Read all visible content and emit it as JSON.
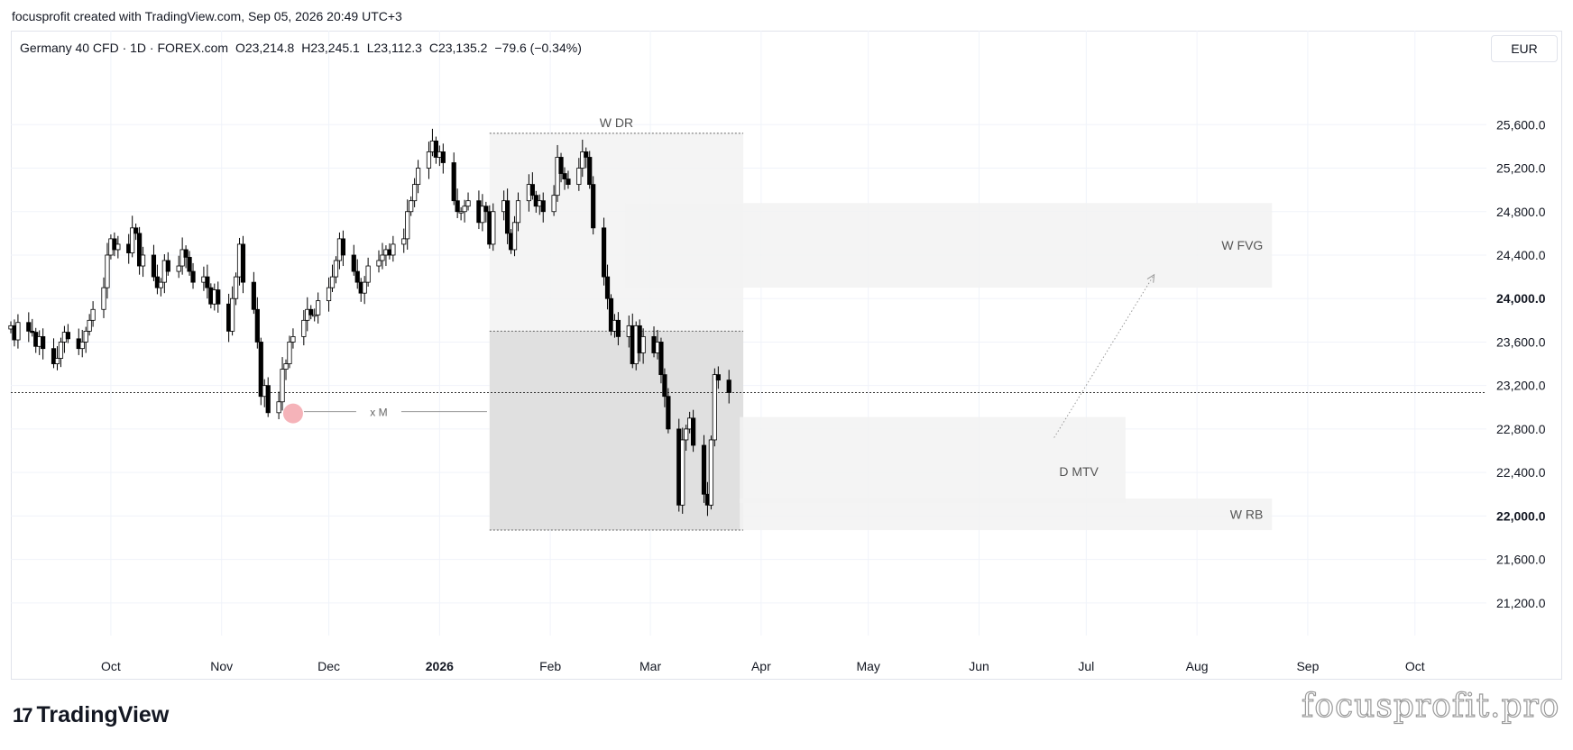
{
  "header": {
    "text": "focusprofit created with TradingView.com, Sep 05, 2026 20:49 UTC+3"
  },
  "symbol": {
    "name": "Germany 40 CFD · 1D · FOREX.com",
    "open": "O23,214.8",
    "high": "H23,245.1",
    "low": "L23,112.3",
    "close": "C23,135.2",
    "change": "−79.6 (−0.34%)"
  },
  "currency": "EUR",
  "footer": {
    "logo_mark": "17",
    "logo_text": "TradingView",
    "watermark": "focusprofit.pro"
  },
  "colors": {
    "candle_up": "#ffffff",
    "candle_down": "#000000",
    "wick": "#000000",
    "zone": "#f2f2f2",
    "zone_dark": "#d9d9d9",
    "marker": "#f3a6ad"
  },
  "chart_data": {
    "type": "candlestick",
    "y_axis": {
      "ylim": [
        20900,
        26100
      ],
      "ticks": [
        "21,200.0",
        "21,600.0",
        "22,000.0",
        "22,400.0",
        "22,800.0",
        "23,200.0",
        "23,600.0",
        "24,000.0",
        "24,400.0",
        "24,800.0",
        "25,200.0",
        "25,600.0"
      ],
      "tick_values": [
        21200,
        21600,
        22000,
        22400,
        22800,
        23200,
        23600,
        24000,
        24400,
        24800,
        25200,
        25600
      ]
    },
    "x_axis": {
      "labels": [
        "Oct",
        "Nov",
        "Dec",
        "2026",
        "Feb",
        "Mar",
        "Apr",
        "May",
        "Jun",
        "Jul",
        "Aug",
        "Sep",
        "Oct"
      ],
      "label_dates": [
        "2025-10-01",
        "2025-11-01",
        "2025-12-01",
        "2026-01-01",
        "2026-02-01",
        "2026-03-01",
        "2026-04-01",
        "2026-05-01",
        "2026-06-01",
        "2026-07-01",
        "2026-08-01",
        "2026-09-01",
        "2026-10-01"
      ],
      "xlim": [
        "2025-09-03",
        "2026-10-21"
      ]
    },
    "grid": true,
    "current_price_line": 23135.2,
    "closes": [
      23750,
      23620,
      23780,
      23700,
      23690,
      23560,
      23650,
      23540,
      23400,
      23450,
      23600,
      23690,
      23630,
      23540,
      23600,
      23700,
      23800,
      23900,
      24100,
      24400,
      24550,
      24450,
      24500,
      24420,
      24650,
      24600,
      24300,
      24400,
      24200,
      24100,
      24150,
      24350,
      24250,
      24300,
      24450,
      24380,
      24250,
      24150,
      24200,
      24100,
      23950,
      24080,
      23950,
      23700,
      24000,
      24200,
      24500,
      24150,
      23900,
      23600,
      23100,
      23200,
      22950,
      23050,
      23350,
      23400,
      23600,
      23650,
      23800,
      23900,
      23850,
      23850,
      23980,
      24100,
      24200,
      24350,
      24550,
      24400,
      24250,
      24150,
      24050,
      24150,
      24300,
      24350,
      24400,
      24450,
      24400,
      24500,
      24550,
      24800,
      24900,
      25050,
      25200,
      25350,
      25450,
      25300,
      25350,
      25250,
      24900,
      24800,
      24800,
      24850,
      24900,
      24700,
      24850,
      24800,
      24500,
      24800,
      24900,
      24600,
      24450,
      24700,
      24900,
      25050,
      24950,
      24850,
      24900,
      24800,
      24950,
      25300,
      25150,
      25100,
      25050,
      25200,
      25350,
      25300,
      25050,
      24650,
      24200,
      24000,
      23700,
      23800,
      23650,
      23750,
      23400,
      23750,
      23500,
      23650,
      23500,
      23600,
      23300,
      23100,
      22800,
      22100,
      22700,
      22800,
      22900,
      22650,
      22200,
      22100,
      22700,
      23300,
      23250,
      23135.2
    ],
    "zones": [
      {
        "label": "W DR",
        "from": "2026-01-15",
        "to": "2026-03-27",
        "high": 25520,
        "low": 21870,
        "shade": "light"
      },
      {
        "label": "",
        "from": "2026-01-15",
        "to": "2026-03-27",
        "high": 23700,
        "low": 21870,
        "shade": "dark"
      },
      {
        "label": "W FVG",
        "from": "2026-02-22",
        "to": "2026-08-22",
        "high": 24880,
        "low": 24100,
        "shade": "light"
      },
      {
        "label": "D MTV",
        "from": "2026-03-26",
        "to": "2026-07-12",
        "high": 22910,
        "low": 22120,
        "shade": "light"
      },
      {
        "label": "W RB",
        "from": "2026-03-26",
        "to": "2026-08-22",
        "high": 22160,
        "low": 21870,
        "shade": "light"
      }
    ],
    "annotations": [
      {
        "label": "x M",
        "date": "2025-11-21",
        "price": 22960
      },
      {
        "type": "projection-arrow",
        "from_date": "2026-06-22",
        "from_price": 22720,
        "to_date": "2026-07-20",
        "to_price": 24220
      }
    ]
  }
}
